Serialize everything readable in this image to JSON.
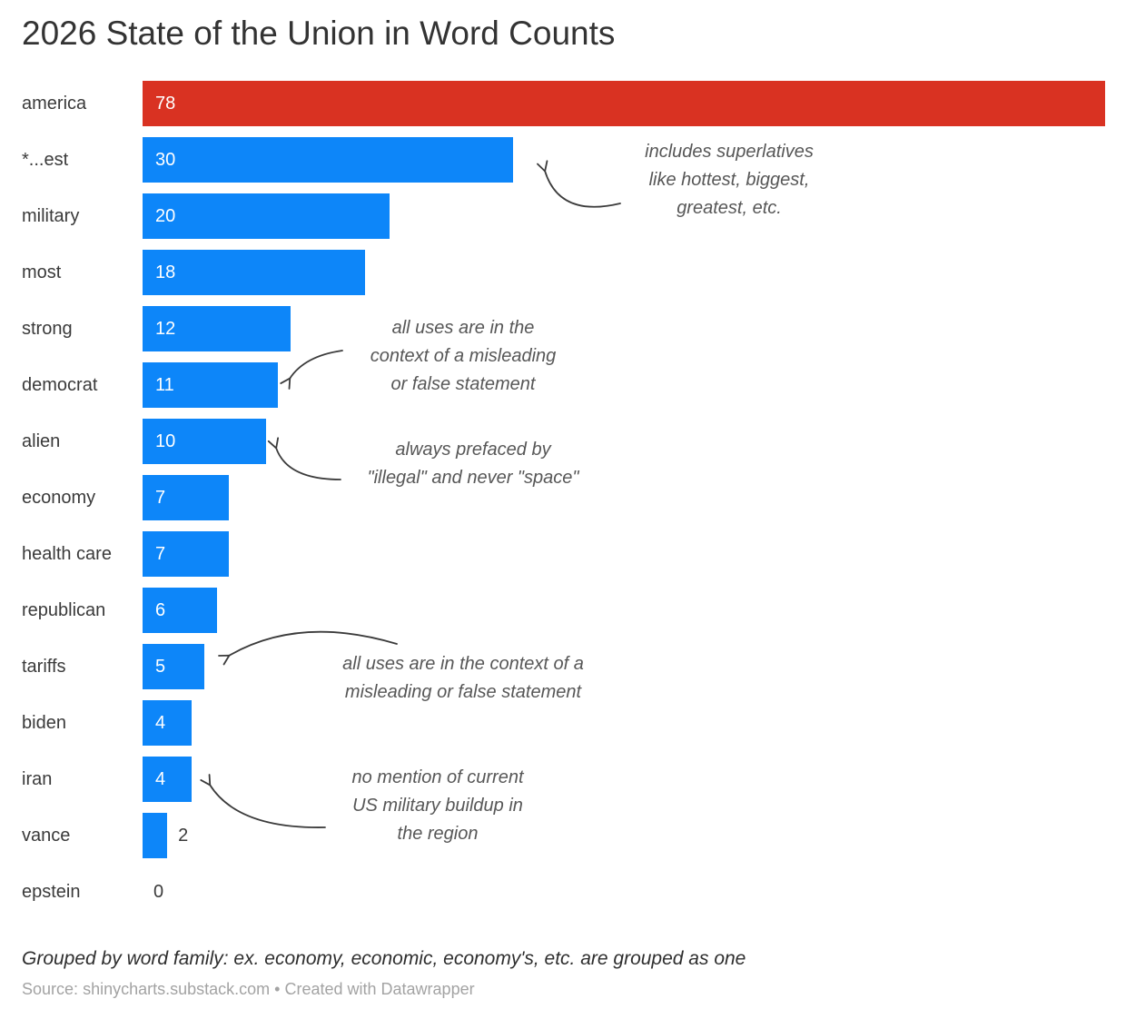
{
  "header": {
    "title": "2026 State of the Union in Word Counts"
  },
  "chart_data": {
    "type": "bar",
    "orientation": "horizontal",
    "title": "2026 State of the Union in Word Counts",
    "xlabel": "",
    "ylabel": "",
    "max_value": 78,
    "grid": false,
    "legend": false,
    "colors": {
      "highlight": "#d93222",
      "default": "#0d86f9",
      "value_label_inside": "#ffffff",
      "value_label_outside": "#3a3a3a"
    },
    "categories": [
      "america",
      "*...est",
      "military",
      "most",
      "strong",
      "democrat",
      "alien",
      "economy",
      "health care",
      "republican",
      "tariffs",
      "biden",
      "iran",
      "vance",
      "epstein"
    ],
    "values": [
      78,
      30,
      20,
      18,
      12,
      11,
      10,
      7,
      7,
      6,
      5,
      4,
      4,
      2,
      0
    ],
    "rows": [
      {
        "label": "america",
        "value": 78,
        "color": "#d93222",
        "value_inside": true
      },
      {
        "label": "*...est",
        "value": 30,
        "color": "#0d86f9",
        "value_inside": true
      },
      {
        "label": "military",
        "value": 20,
        "color": "#0d86f9",
        "value_inside": true
      },
      {
        "label": "most",
        "value": 18,
        "color": "#0d86f9",
        "value_inside": true
      },
      {
        "label": "strong",
        "value": 12,
        "color": "#0d86f9",
        "value_inside": true
      },
      {
        "label": "democrat",
        "value": 11,
        "color": "#0d86f9",
        "value_inside": true
      },
      {
        "label": "alien",
        "value": 10,
        "color": "#0d86f9",
        "value_inside": true
      },
      {
        "label": "economy",
        "value": 7,
        "color": "#0d86f9",
        "value_inside": true
      },
      {
        "label": "health care",
        "value": 7,
        "color": "#0d86f9",
        "value_inside": true
      },
      {
        "label": "republican",
        "value": 6,
        "color": "#0d86f9",
        "value_inside": true
      },
      {
        "label": "tariffs",
        "value": 5,
        "color": "#0d86f9",
        "value_inside": true
      },
      {
        "label": "biden",
        "value": 4,
        "color": "#0d86f9",
        "value_inside": true
      },
      {
        "label": "iran",
        "value": 4,
        "color": "#0d86f9",
        "value_inside": true
      },
      {
        "label": "vance",
        "value": 2,
        "color": "#0d86f9",
        "value_inside": false
      },
      {
        "label": "epstein",
        "value": 0,
        "color": "#0d86f9",
        "value_inside": false
      }
    ],
    "annotations": [
      {
        "target": "*...est",
        "lines": [
          "includes superlatives",
          "like hottest, biggest,",
          "greatest, etc."
        ]
      },
      {
        "target": "democrat",
        "lines": [
          "all uses are in the",
          "context of a misleading",
          "or false statement"
        ]
      },
      {
        "target": "alien",
        "lines": [
          "always prefaced by",
          "\"illegal\" and never \"space\""
        ]
      },
      {
        "target": "tariffs",
        "lines": [
          "all uses are in the context of a",
          "misleading or false statement"
        ]
      },
      {
        "target": "iran",
        "lines": [
          "no mention of current",
          "US military buildup in",
          "the region"
        ]
      }
    ]
  },
  "footer": {
    "note": "Grouped by word family: ex. economy, economic, economy's, etc. are grouped as one",
    "source_label": "Source:",
    "source_link": "shinycharts.substack.com",
    "separator": "•",
    "credit": "Created with Datawrapper"
  }
}
